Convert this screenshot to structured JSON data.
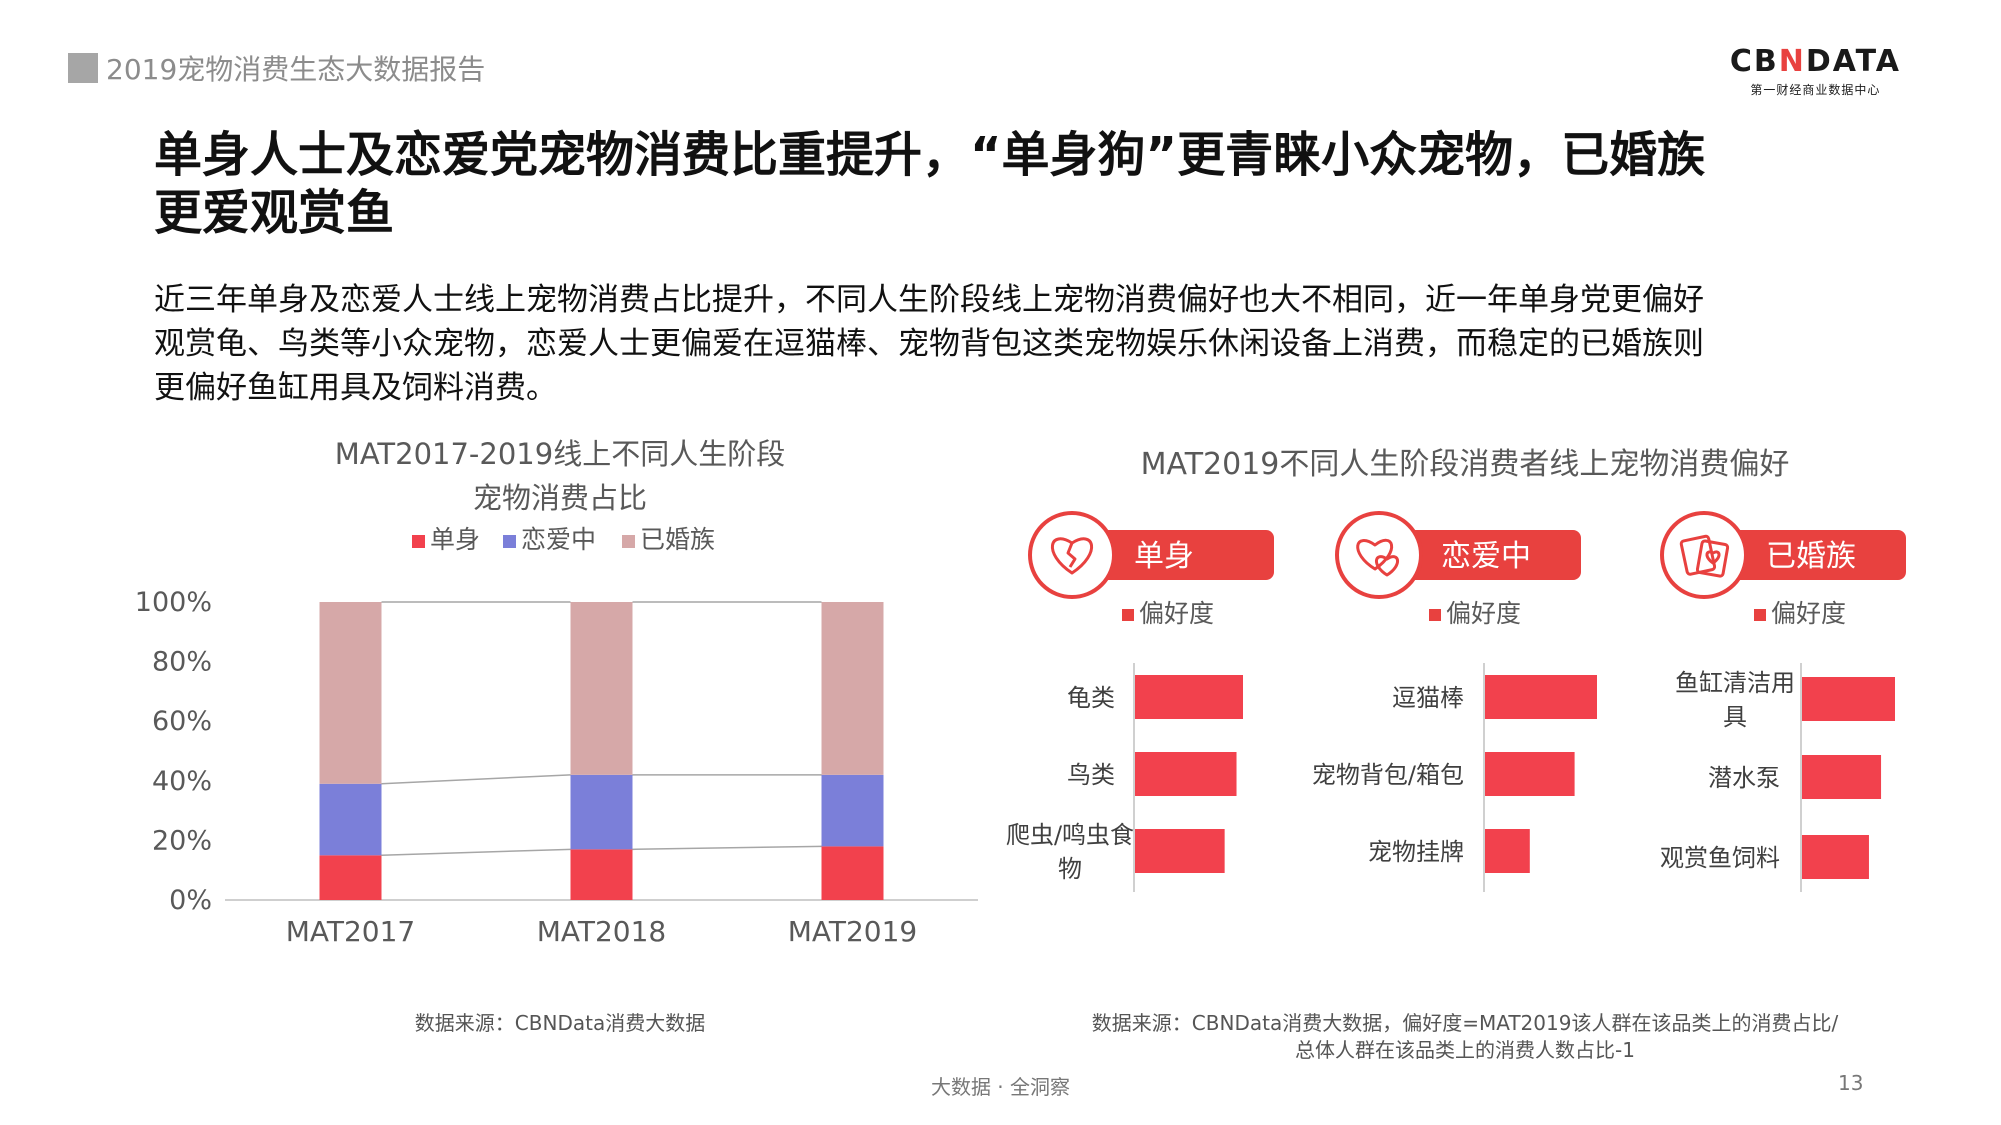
{
  "header": {
    "report_title": "2019宠物消费生态大数据报告",
    "brand": "CBNDATA",
    "brand_sub": "第一财经商业数据中心"
  },
  "headline": {
    "line1": "单身人士及恋爱党宠物消费比重提升，“单身狗”更青睐小众宠物，已婚族",
    "line2": "更爱观赏鱼"
  },
  "intro": {
    "line1": "近三年单身及恋爱人士线上宠物消费占比提升，不同人生阶段线上宠物消费偏好也大不相同，近一年单身党更偏好",
    "line2": "观赏龟、鸟类等小众宠物，恋爱人士更偏爱在逗猫棒、宠物背包这类宠物娱乐休闲设备上消费，而稳定的已婚族则",
    "line3": "更偏好鱼缸用具及饲料消费。"
  },
  "colors": {
    "single": "#f2414d",
    "dating": "#7b7fd9",
    "married": "#d6a8a8",
    "accent": "#e8413f",
    "grid": "#cfcfcf"
  },
  "chart_data": [
    {
      "type": "bar",
      "stacked": true,
      "title_line1": "MAT2017-2019线上不同人生阶段",
      "title_line2": "宠物消费占比",
      "categories": [
        "MAT2017",
        "MAT2018",
        "MAT2019"
      ],
      "series": [
        {
          "name": "单身",
          "values": [
            15,
            17,
            18
          ]
        },
        {
          "name": "恋爱中",
          "values": [
            24,
            25,
            24
          ]
        },
        {
          "name": "已婚族",
          "values": [
            61,
            58,
            58
          ]
        }
      ],
      "ylim": [
        0,
        100
      ],
      "yticks": [
        "0%",
        "20%",
        "40%",
        "60%",
        "80%",
        "100%"
      ],
      "legend": "top",
      "source": "数据来源：CBNData消费大数据"
    },
    {
      "type": "bar",
      "orientation": "horizontal",
      "title": "MAT2019不同人生阶段消费者线上宠物消费偏好",
      "panels": [
        {
          "name": "单身",
          "icon": "broken-heart-icon",
          "legend": "偏好度",
          "categories": [
            "龟类",
            "鸟类",
            "爬虫/鸣虫食物"
          ],
          "values": [
            1.0,
            0.94,
            0.83
          ]
        },
        {
          "name": "恋爱中",
          "icon": "couple-hearts-icon",
          "legend": "偏好度",
          "categories": [
            "逗猫棒",
            "宠物背包/箱包",
            "宠物挂牌"
          ],
          "values": [
            1.0,
            0.8,
            0.4
          ]
        },
        {
          "name": "已婚族",
          "icon": "wedding-card-icon",
          "legend": "偏好度",
          "categories": [
            "鱼缸清洁用具",
            "潜水泵",
            "观赏鱼饲料"
          ],
          "values": [
            1.0,
            0.85,
            0.72
          ]
        }
      ],
      "source_line1": "数据来源：CBNData消费大数据，偏好度=MAT2019该人群在该品类上的消费占比/",
      "source_line2": "总体人群在该品类上的消费人数占比-1"
    }
  ],
  "footer": {
    "tagline": "大数据 · 全洞察",
    "page_number": "13"
  }
}
